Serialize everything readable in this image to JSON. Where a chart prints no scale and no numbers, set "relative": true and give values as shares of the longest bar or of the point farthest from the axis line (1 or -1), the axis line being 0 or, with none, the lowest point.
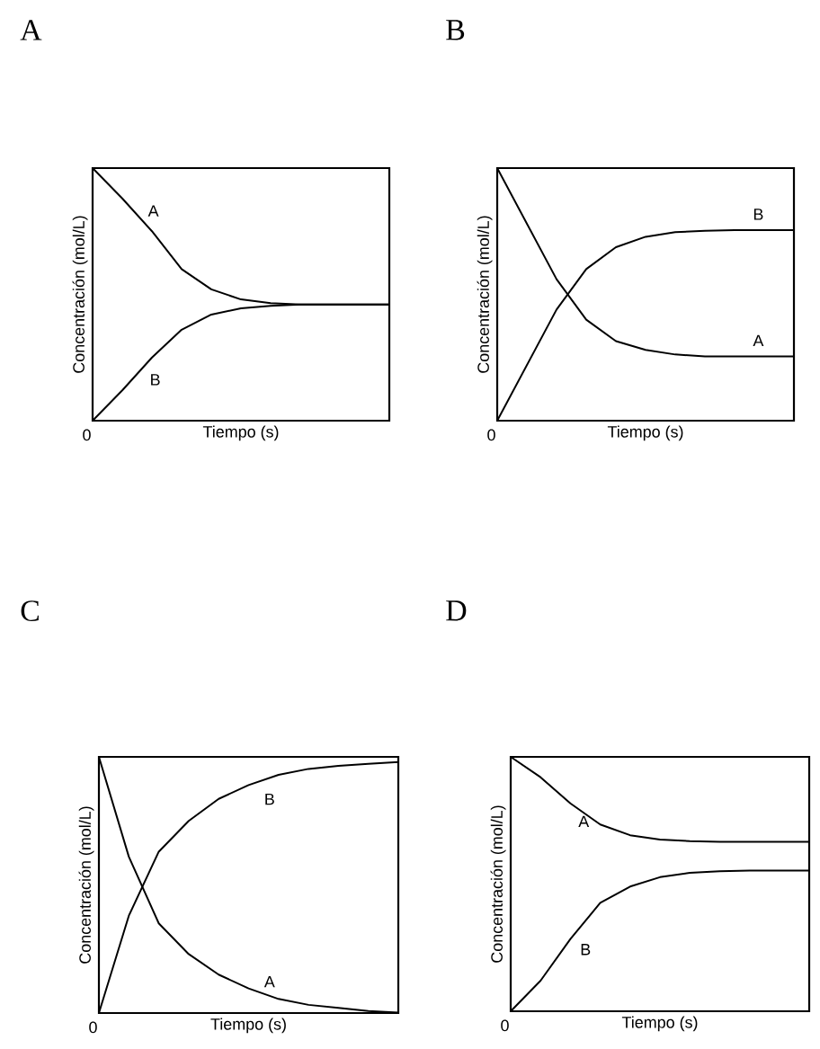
{
  "chart_data": [
    {
      "type": "line",
      "title": "A",
      "xlabel": "Tiempo (s)",
      "ylabel": "Concentración (mol/L)",
      "relative": true,
      "annotations": [
        "0"
      ],
      "categories": [
        null,
        null,
        null,
        null,
        null,
        null,
        null,
        null,
        null,
        null,
        null
      ],
      "series": [
        {
          "name": "A",
          "color": "#000000",
          "values": [
            1,
            0.88,
            0.75,
            0.6,
            0.52,
            0.48,
            0.465,
            0.46,
            0.46,
            0.46,
            0.46
          ]
        },
        {
          "name": "B",
          "color": "#000000",
          "values": [
            0,
            0.12,
            0.25,
            0.36,
            0.42,
            0.445,
            0.455,
            0.46,
            0.46,
            0.46,
            0.46
          ]
        }
      ]
    },
    {
      "type": "line",
      "title": "B",
      "xlabel": "Tiempo (s)",
      "ylabel": "Concentración (mol/L)",
      "relative": true,
      "annotations": [
        "0"
      ],
      "categories": [
        null,
        null,
        null,
        null,
        null,
        null,
        null,
        null,
        null,
        null,
        null
      ],
      "series": [
        {
          "name": "A",
          "color": "#000000",
          "values": [
            1,
            0.78,
            0.56,
            0.4,
            0.315,
            0.28,
            0.262,
            0.254,
            0.254,
            0.254,
            0.254
          ]
        },
        {
          "name": "B",
          "color": "#000000",
          "values": [
            0,
            0.22,
            0.44,
            0.6,
            0.687,
            0.728,
            0.746,
            0.752,
            0.754,
            0.754,
            0.754
          ]
        }
      ]
    },
    {
      "type": "line",
      "title": "C",
      "xlabel": "Tiempo (s)",
      "ylabel": "Concentración (mol/L)",
      "relative": true,
      "annotations": [
        "0"
      ],
      "categories": [
        null,
        null,
        null,
        null,
        null,
        null,
        null,
        null,
        null,
        null,
        null
      ],
      "series": [
        {
          "name": "A",
          "color": "#000000",
          "values": [
            1,
            0.61,
            0.35,
            0.23,
            0.15,
            0.096,
            0.055,
            0.032,
            0.02,
            0.008,
            0.002
          ]
        },
        {
          "name": "B",
          "color": "#000000",
          "values": [
            0,
            0.38,
            0.63,
            0.75,
            0.836,
            0.89,
            0.93,
            0.953,
            0.965,
            0.973,
            0.98
          ]
        }
      ]
    },
    {
      "type": "line",
      "title": "D",
      "xlabel": "Tiempo (s)",
      "ylabel": "Concentración (mol/L)",
      "relative": true,
      "annotations": [
        "0"
      ],
      "categories": [
        null,
        null,
        null,
        null,
        null,
        null,
        null,
        null,
        null,
        null,
        null
      ],
      "series": [
        {
          "name": "A",
          "color": "#000000",
          "values": [
            1,
            0.92,
            0.817,
            0.734,
            0.692,
            0.675,
            0.669,
            0.666,
            0.666,
            0.666,
            0.666
          ]
        },
        {
          "name": "B",
          "color": "#000000",
          "values": [
            0,
            0.12,
            0.284,
            0.426,
            0.49,
            0.527,
            0.544,
            0.55,
            0.553,
            0.553,
            0.553
          ]
        }
      ]
    }
  ]
}
